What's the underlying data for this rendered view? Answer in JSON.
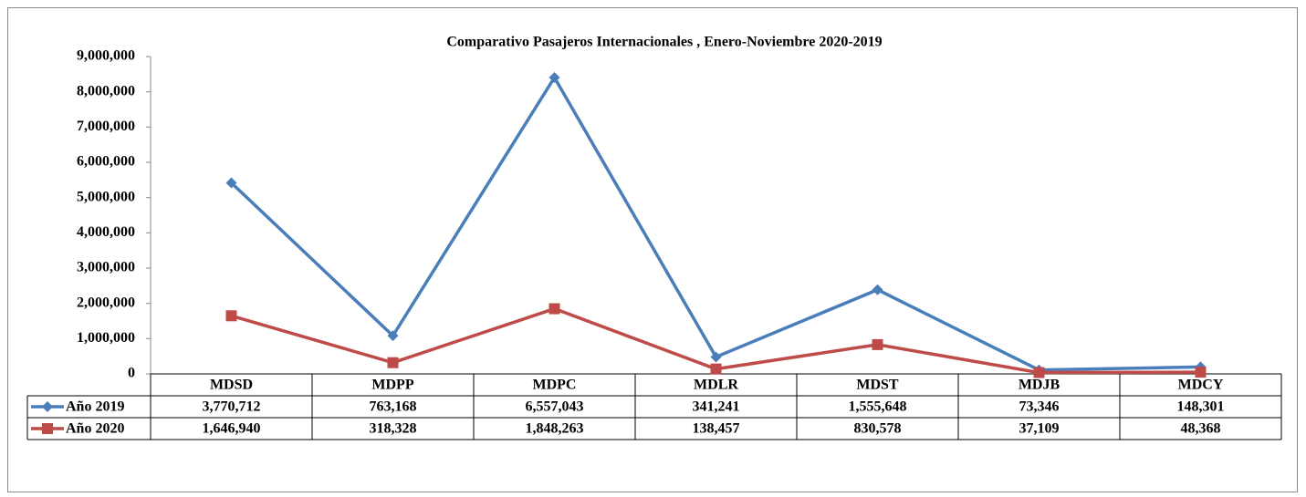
{
  "chart_data": {
    "type": "line",
    "stacked": true,
    "title": "Comparativo Pasajeros Internacionales , Enero-Noviembre 2020-2019",
    "categories": [
      "MDSD",
      "MDPP",
      "MDPC",
      "MDLR",
      "MDST",
      "MDJB",
      "MDCY"
    ],
    "series": [
      {
        "name": "Año 2019",
        "color": "#4a7ebb",
        "marker": "diamond",
        "values": [
          3770712,
          763168,
          6557043,
          341241,
          1555648,
          73346,
          148301
        ],
        "value_labels": [
          "3,770,712",
          "763,168",
          "6,557,043",
          "341,241",
          "1,555,648",
          "73,346",
          "148,301"
        ]
      },
      {
        "name": "Año 2020",
        "color": "#be4b48",
        "marker": "square",
        "values": [
          1646940,
          318328,
          1848263,
          138457,
          830578,
          37109,
          48368
        ],
        "value_labels": [
          "1,646,940",
          "318,328",
          "1,848,263",
          "138,457",
          "830,578",
          "37,109",
          "48,368"
        ]
      }
    ],
    "ylim": [
      0,
      9000000
    ],
    "yticks": [
      0,
      {
        "value": 1000000,
        "label": "1,000,000"
      },
      {
        "value": 2000000,
        "label": "2,000,000"
      },
      {
        "value": 3000000,
        "label": "3,000,000"
      },
      {
        "value": 4000000,
        "label": "4,000,000"
      },
      {
        "value": 5000000,
        "label": "5,000,000"
      },
      {
        "value": 6000000,
        "label": "6,000,000"
      },
      {
        "value": 7000000,
        "label": "7,000,000"
      },
      {
        "value": 8000000,
        "label": "8,000,000"
      },
      {
        "value": 9000000,
        "label": "9,000,000"
      }
    ],
    "grid": false
  }
}
